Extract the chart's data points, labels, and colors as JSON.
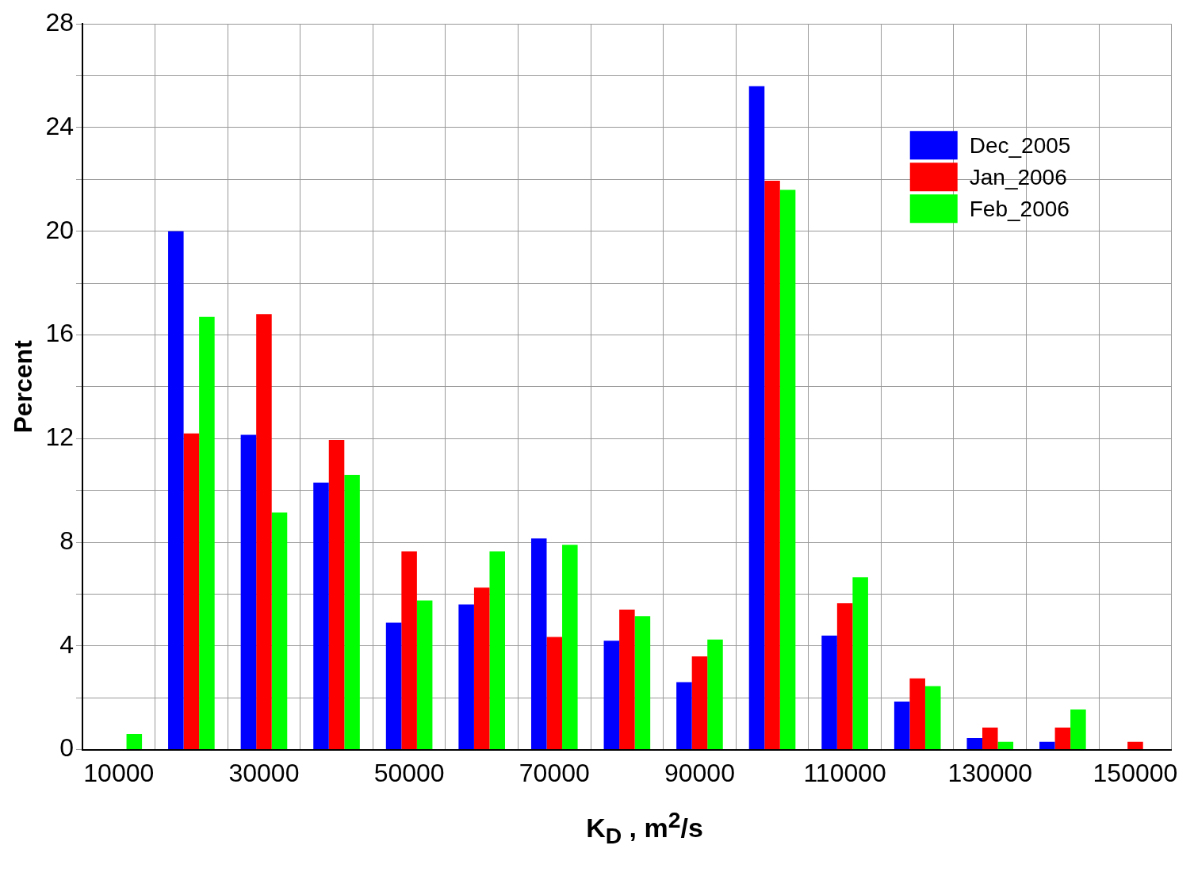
{
  "chart_data": {
    "type": "bar",
    "xlabel": "K$_{D}$ , m$^{2}$/s",
    "ylabel": "Percent",
    "categories": [
      "10000",
      null,
      "30000",
      null,
      "50000",
      null,
      "70000",
      null,
      "90000",
      null,
      "110000",
      null,
      "130000",
      null,
      "150000"
    ],
    "series": [
      {
        "name": "Dec_2005",
        "color": "#0000ff",
        "values": [
          0,
          20.0,
          12.15,
          10.3,
          4.9,
          5.6,
          8.15,
          4.2,
          2.6,
          25.6,
          4.4,
          1.85,
          0.45,
          0.3,
          0
        ]
      },
      {
        "name": "Jan_2006",
        "color": "#ff0000",
        "values": [
          0,
          12.2,
          16.8,
          11.95,
          7.65,
          6.25,
          4.35,
          5.4,
          3.6,
          21.95,
          5.65,
          2.75,
          0.85,
          0.85,
          0.3
        ]
      },
      {
        "name": "Feb_2006",
        "color": "#00ff00",
        "values": [
          0.6,
          16.7,
          9.15,
          10.6,
          5.75,
          7.65,
          7.9,
          5.15,
          4.25,
          21.6,
          6.65,
          2.45,
          0.3,
          1.55,
          0
        ]
      }
    ],
    "ylim": [
      0,
      28
    ],
    "yticks": [
      0,
      {
        "value": 2,
        "label": null
      },
      4,
      {
        "value": 6,
        "label": null
      },
      8,
      {
        "value": 10,
        "label": null
      },
      12,
      {
        "value": 14,
        "label": null
      },
      16,
      {
        "value": 18,
        "label": null
      },
      20,
      {
        "value": 22,
        "label": null
      },
      24,
      {
        "value": 26,
        "label": null
      },
      28
    ],
    "grid": true,
    "legend": "top right"
  }
}
